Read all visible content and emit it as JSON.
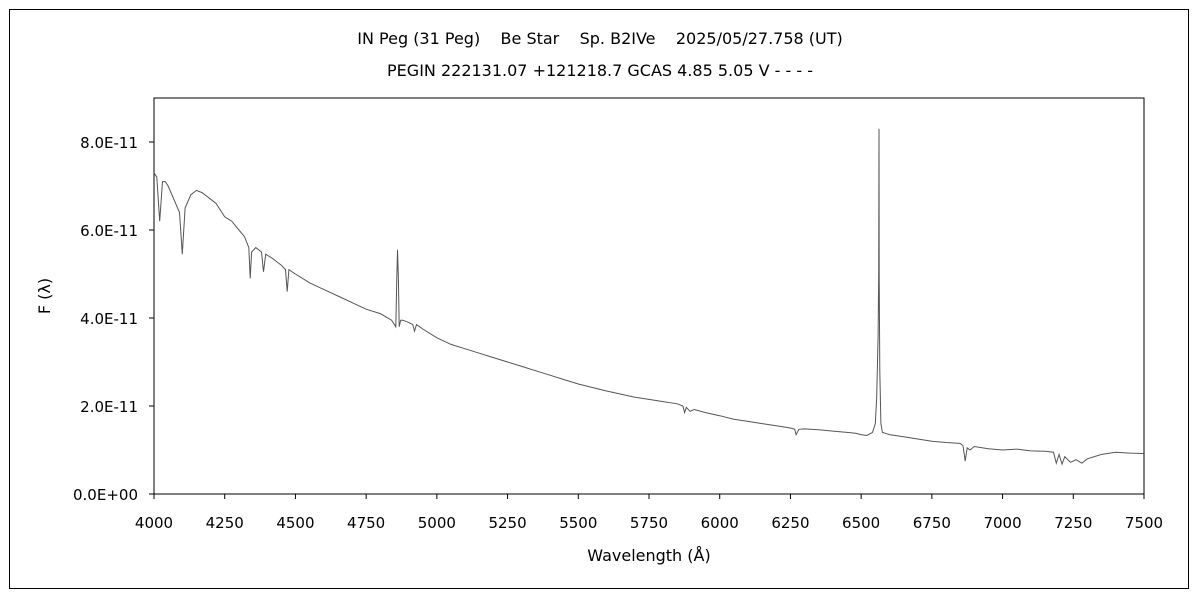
{
  "chart_data": {
    "type": "line",
    "title": "IN Peg (31 Peg)    Be Star    Sp. B2IVe    2025/05/27.758 (UT)",
    "subtitle": "PEGIN 222131.07 +121218.7 GCAS 4.85 5.05 V - - - -",
    "xlabel": "Wavelength (Å)",
    "ylabel": "F (λ)",
    "xlim": [
      4000,
      7500
    ],
    "ylim": [
      0,
      9e-11
    ],
    "x_ticks": [
      4000,
      4250,
      4500,
      4750,
      5000,
      5250,
      5500,
      5750,
      6000,
      6250,
      6500,
      6750,
      7000,
      7250,
      7500
    ],
    "x_tick_labels": [
      "4000",
      "4250",
      "4500",
      "4750",
      "5000",
      "5250",
      "5500",
      "5750",
      "6000",
      "6250",
      "6500",
      "6750",
      "7000",
      "7250",
      "7500"
    ],
    "y_ticks": [
      0,
      2e-11,
      4e-11,
      6e-11,
      8e-11
    ],
    "y_tick_labels": [
      "0.0E+00",
      "2.0E-11",
      "4.0E-11",
      "6.0E-11",
      "8.0E-11"
    ],
    "grid": false,
    "legend": "none",
    "line_color": "#555555",
    "series": [
      {
        "x": [
          4000,
          4010,
          4020,
          4030,
          4040,
          4050,
          4070,
          4090,
          4100,
          4110,
          4130,
          4150,
          4170,
          4200,
          4220,
          4250,
          4275,
          4300,
          4320,
          4335,
          4340,
          4345,
          4360,
          4380,
          4387,
          4395,
          4420,
          4450,
          4465,
          4471,
          4477,
          4500,
          4550,
          4600,
          4650,
          4700,
          4750,
          4800,
          4840,
          4855,
          4858,
          4861,
          4864,
          4867,
          4872,
          4880,
          4900,
          4915,
          4921,
          4928,
          4950,
          5000,
          5050,
          5100,
          5150,
          5200,
          5250,
          5300,
          5350,
          5400,
          5450,
          5500,
          5550,
          5600,
          5650,
          5700,
          5750,
          5800,
          5850,
          5870,
          5876,
          5882,
          5895,
          5910,
          5950,
          6000,
          6050,
          6100,
          6150,
          6200,
          6250,
          6265,
          6270,
          6280,
          6300,
          6350,
          6400,
          6450,
          6480,
          6500,
          6520,
          6540,
          6550,
          6555,
          6560,
          6562,
          6563,
          6564,
          6566,
          6570,
          6575,
          6590,
          6600,
          6650,
          6700,
          6750,
          6800,
          6850,
          6860,
          6868,
          6875,
          6885,
          6900,
          6950,
          7000,
          7050,
          7100,
          7150,
          7180,
          7190,
          7200,
          7210,
          7220,
          7240,
          7260,
          7280,
          7300,
          7350,
          7400,
          7450,
          7500
        ],
        "y": [
          7.3e-11,
          7.2e-11,
          6.2e-11,
          7.1e-11,
          7.1e-11,
          7e-11,
          6.7e-11,
          6.4e-11,
          5.45e-11,
          6.5e-11,
          6.8e-11,
          6.9e-11,
          6.85e-11,
          6.7e-11,
          6.6e-11,
          6.3e-11,
          6.2e-11,
          6e-11,
          5.85e-11,
          5.6e-11,
          4.9e-11,
          5.5e-11,
          5.6e-11,
          5.5e-11,
          5.05e-11,
          5.45e-11,
          5.35e-11,
          5.2e-11,
          5.1e-11,
          4.6e-11,
          5.1e-11,
          5e-11,
          4.8e-11,
          4.65e-11,
          4.5e-11,
          4.35e-11,
          4.2e-11,
          4.1e-11,
          3.95e-11,
          3.8e-11,
          4.8e-11,
          5.55e-11,
          4.9e-11,
          3.8e-11,
          3.95e-11,
          3.95e-11,
          3.9e-11,
          3.85e-11,
          3.7e-11,
          3.85e-11,
          3.75e-11,
          3.55e-11,
          3.4e-11,
          3.3e-11,
          3.2e-11,
          3.1e-11,
          3e-11,
          2.9e-11,
          2.8e-11,
          2.7e-11,
          2.6e-11,
          2.5e-11,
          2.42e-11,
          2.34e-11,
          2.27e-11,
          2.2e-11,
          2.15e-11,
          2.1e-11,
          2.05e-11,
          2e-11,
          1.85e-11,
          1.97e-11,
          1.88e-11,
          1.92e-11,
          1.85e-11,
          1.78e-11,
          1.7e-11,
          1.65e-11,
          1.6e-11,
          1.55e-11,
          1.5e-11,
          1.47e-11,
          1.35e-11,
          1.47e-11,
          1.48e-11,
          1.46e-11,
          1.43e-11,
          1.4e-11,
          1.38e-11,
          1.35e-11,
          1.33e-11,
          1.4e-11,
          1.6e-11,
          2.2e-11,
          3.6e-11,
          5e-11,
          8.3e-11,
          4.9e-11,
          2.8e-11,
          1.6e-11,
          1.4e-11,
          1.37e-11,
          1.35e-11,
          1.3e-11,
          1.25e-11,
          1.2e-11,
          1.17e-11,
          1.15e-11,
          1.1e-11,
          7.5e-12,
          1.05e-11,
          1e-11,
          1.08e-11,
          1.03e-11,
          1e-11,
          1.02e-11,
          9.8e-12,
          9.7e-12,
          9.5e-12,
          7e-12,
          9e-12,
          6.8e-12,
          8.5e-12,
          7.2e-12,
          7.8e-12,
          7e-12,
          8e-12,
          9e-12,
          9.5e-12,
          9.3e-12,
          9.2e-12
        ]
      }
    ]
  }
}
